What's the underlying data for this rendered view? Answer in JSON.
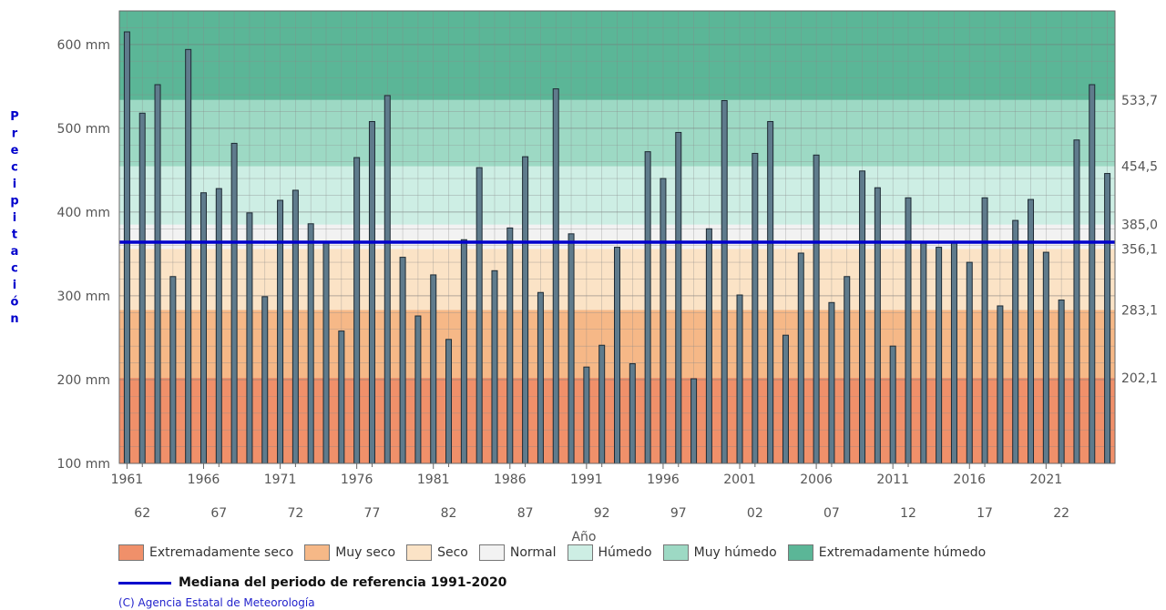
{
  "chart_data": {
    "type": "bar",
    "xlabel": "Año",
    "ylabel": "Precipitación",
    "ylim": [
      100,
      640
    ],
    "y_ticks": [
      100,
      200,
      300,
      400,
      500,
      600
    ],
    "y_tick_suffix": " mm",
    "x_ticks_top": [
      "1961",
      "1966",
      "1971",
      "1976",
      "1981",
      "1986",
      "1991",
      "1996",
      "2001",
      "2006",
      "2011",
      "2016",
      "2021"
    ],
    "x_ticks_bottom": [
      "62",
      "67",
      "72",
      "77",
      "82",
      "87",
      "92",
      "97",
      "02",
      "07",
      "12",
      "17",
      "22"
    ],
    "years": [
      1961,
      1962,
      1963,
      1964,
      1965,
      1966,
      1967,
      1968,
      1969,
      1970,
      1971,
      1972,
      1973,
      1974,
      1975,
      1976,
      1977,
      1978,
      1979,
      1980,
      1981,
      1982,
      1983,
      1984,
      1985,
      1986,
      1987,
      1988,
      1989,
      1990,
      1991,
      1992,
      1993,
      1994,
      1995,
      1996,
      1997,
      1998,
      1999,
      2000,
      2001,
      2002,
      2003,
      2004,
      2005,
      2006,
      2007,
      2008,
      2009,
      2010,
      2011,
      2012,
      2013,
      2014,
      2015,
      2016,
      2017,
      2018,
      2019,
      2020,
      2021,
      2022,
      2023,
      2024,
      2025
    ],
    "values": [
      615,
      518,
      552,
      323,
      594,
      423,
      428,
      482,
      399,
      299,
      414,
      426,
      386,
      365,
      258,
      465,
      508,
      539,
      346,
      276,
      325,
      248,
      367,
      453,
      330,
      381,
      466,
      304,
      547,
      374,
      215,
      241,
      358,
      219,
      472,
      440,
      495,
      201,
      380,
      533,
      301,
      470,
      508,
      253,
      351,
      468,
      292,
      323,
      449,
      429,
      240,
      417,
      364,
      358,
      365,
      340,
      417,
      288,
      390,
      415,
      352,
      295,
      486,
      552,
      446
    ],
    "median": 364,
    "right_labels": [
      "533,7",
      "454,5",
      "385,0",
      "356,1",
      "283,1",
      "202,1"
    ],
    "bands": [
      {
        "name": "Extremadamente seco",
        "from": 100,
        "to": 202.1,
        "color": "#f0906a"
      },
      {
        "name": "Muy seco",
        "from": 202.1,
        "to": 283.1,
        "color": "#f6b887"
      },
      {
        "name": "Seco",
        "from": 283.1,
        "to": 356.1,
        "color": "#fbe3c6"
      },
      {
        "name": "Normal",
        "from": 356.1,
        "to": 385.0,
        "color": "#f2f2f2"
      },
      {
        "name": "Húmedo",
        "from": 385.0,
        "to": 454.5,
        "color": "#cdeee4"
      },
      {
        "name": "Muy húmedo",
        "from": 454.5,
        "to": 533.7,
        "color": "#9dd9c4"
      },
      {
        "name": "Extremadamente húmedo",
        "from": 533.7,
        "to": 640,
        "color": "#5bb697"
      }
    ],
    "bar_color": "#5f7b8c",
    "median_color": "#0000cc",
    "grid": true
  },
  "legend": {
    "items": [
      {
        "label": "Extremadamente seco",
        "color": "#f0906a"
      },
      {
        "label": "Muy seco",
        "color": "#f6b887"
      },
      {
        "label": "Seco",
        "color": "#fbe3c6"
      },
      {
        "label": "Normal",
        "color": "#f2f2f2"
      },
      {
        "label": "Húmedo",
        "color": "#cdeee4"
      },
      {
        "label": "Muy húmedo",
        "color": "#9dd9c4"
      },
      {
        "label": "Extremadamente húmedo",
        "color": "#5bb697"
      }
    ],
    "median_label": "Mediana del periodo de referencia 1991-2020"
  },
  "credit": "(C) Agencia Estatal de Meteorología"
}
